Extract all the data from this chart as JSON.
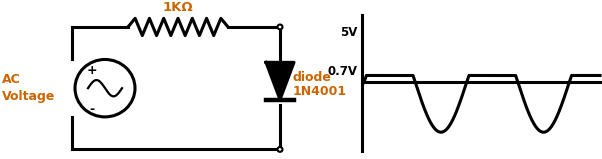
{
  "fig_width": 6.02,
  "fig_height": 1.59,
  "dpi": 100,
  "bg_color": "#ffffff",
  "circuit_color": "#000000",
  "text_color_orange": "#cc6600",
  "text_color_black": "#000000",
  "resistor_label": "1KΩ",
  "ac_label_line1": "AC",
  "ac_label_line2": "Voltage",
  "diode_label_line1": "diode",
  "diode_label_line2": "1N4001",
  "voltage_label_top": "5V",
  "voltage_label_bot": "0.7V",
  "clip_level": 0.7,
  "amplitude": 5.0,
  "num_cycles": 2.3,
  "waveform_lw": 2.2,
  "circuit_lw": 2.2
}
